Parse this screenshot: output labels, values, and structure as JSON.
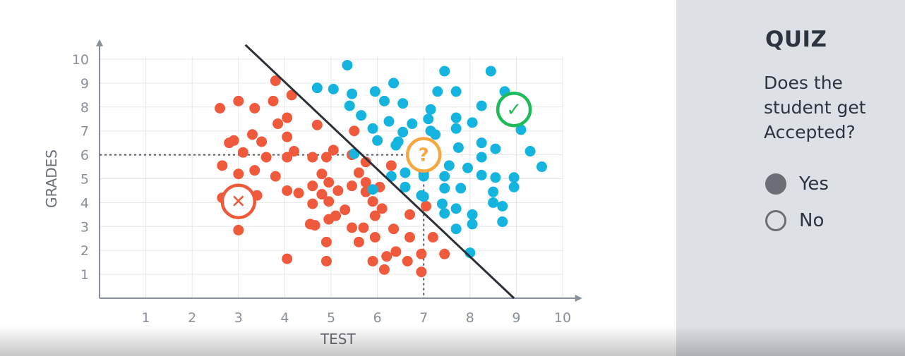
{
  "quiz": {
    "title": "QUIZ",
    "question": "Does the student get Accepted?",
    "options": [
      {
        "label": "Yes",
        "selected": true
      },
      {
        "label": "No",
        "selected": false
      }
    ]
  },
  "colors": {
    "rejected": "#f05a3c",
    "accepted": "#15b4de",
    "question_marker": "#f5a742",
    "accepted_marker": "#1fba5a",
    "axis": "#8a9099",
    "grid": "#e5e7ea",
    "boundary_line": "#2b2f36",
    "panel_bg": "#dde1e6"
  },
  "chart_data": {
    "type": "scatter",
    "xlabel": "TEST",
    "ylabel": "GRADES",
    "xlim": [
      0,
      10.3
    ],
    "ylim": [
      0,
      10.6
    ],
    "xticks": [
      1,
      2,
      3,
      4,
      5,
      6,
      7,
      8,
      9,
      10
    ],
    "yticks": [
      1,
      2,
      3,
      4,
      5,
      6,
      7,
      8,
      9,
      10
    ],
    "grid": true,
    "series": [
      {
        "color_key": "rejected",
        "points": [
          [
            2.6,
            7.95
          ],
          [
            3.0,
            8.25
          ],
          [
            2.8,
            6.5
          ],
          [
            2.9,
            6.6
          ],
          [
            3.3,
            6.85
          ],
          [
            3.1,
            6.1
          ],
          [
            3.5,
            6.55
          ],
          [
            3.35,
            7.95
          ],
          [
            3.8,
            9.1
          ],
          [
            3.75,
            8.25
          ],
          [
            4.15,
            8.5
          ],
          [
            3.85,
            7.3
          ],
          [
            4.05,
            7.55
          ],
          [
            3.6,
            5.9
          ],
          [
            4.05,
            6.75
          ],
          [
            4.2,
            6.15
          ],
          [
            4.05,
            5.9
          ],
          [
            4.7,
            7.25
          ],
          [
            2.65,
            5.55
          ],
          [
            3.0,
            5.2
          ],
          [
            3.35,
            5.35
          ],
          [
            3.8,
            5.1
          ],
          [
            2.65,
            4.2
          ],
          [
            3.4,
            4.3
          ],
          [
            4.05,
            4.5
          ],
          [
            4.3,
            4.4
          ],
          [
            3.0,
            2.85
          ],
          [
            4.05,
            1.65
          ],
          [
            4.6,
            5.9
          ],
          [
            4.9,
            5.9
          ],
          [
            5.05,
            6.2
          ],
          [
            5.45,
            6.0
          ],
          [
            5.6,
            5.25
          ],
          [
            5.75,
            5.7
          ],
          [
            5.5,
            7.0
          ],
          [
            4.8,
            5.2
          ],
          [
            4.6,
            4.7
          ],
          [
            4.8,
            4.35
          ],
          [
            4.95,
            4.05
          ],
          [
            4.6,
            3.95
          ],
          [
            4.95,
            4.85
          ],
          [
            5.15,
            4.5
          ],
          [
            5.45,
            4.7
          ],
          [
            5.75,
            4.85
          ],
          [
            5.75,
            4.45
          ],
          [
            5.3,
            3.7
          ],
          [
            5.1,
            3.45
          ],
          [
            4.95,
            3.3
          ],
          [
            4.55,
            3.1
          ],
          [
            4.65,
            3.05
          ],
          [
            5.45,
            2.95
          ],
          [
            5.7,
            2.95
          ],
          [
            4.9,
            2.35
          ],
          [
            5.6,
            2.35
          ],
          [
            6.05,
            4.65
          ],
          [
            5.9,
            4.05
          ],
          [
            6.1,
            3.75
          ],
          [
            5.95,
            3.45
          ],
          [
            5.95,
            2.55
          ],
          [
            6.35,
            2.9
          ],
          [
            6.7,
            3.5
          ],
          [
            6.7,
            2.55
          ],
          [
            7.2,
            2.55
          ],
          [
            6.2,
            1.75
          ],
          [
            6.4,
            1.95
          ],
          [
            6.15,
            1.2
          ],
          [
            5.9,
            1.55
          ],
          [
            6.65,
            1.55
          ],
          [
            6.95,
            1.85
          ],
          [
            6.95,
            1.1
          ],
          [
            7.45,
            1.85
          ],
          [
            7.05,
            3.85
          ],
          [
            6.3,
            5.55
          ],
          [
            4.9,
            1.55
          ]
        ]
      },
      {
        "color_key": "accepted",
        "points": [
          [
            4.7,
            8.8
          ],
          [
            5.05,
            8.75
          ],
          [
            5.35,
            9.75
          ],
          [
            5.45,
            8.55
          ],
          [
            5.4,
            8.05
          ],
          [
            5.65,
            7.65
          ],
          [
            5.95,
            8.65
          ],
          [
            6.15,
            8.25
          ],
          [
            6.35,
            9.0
          ],
          [
            6.55,
            8.15
          ],
          [
            5.9,
            7.1
          ],
          [
            6.0,
            6.6
          ],
          [
            6.25,
            7.4
          ],
          [
            6.45,
            6.55
          ],
          [
            6.55,
            6.95
          ],
          [
            6.75,
            7.3
          ],
          [
            7.1,
            7.5
          ],
          [
            7.15,
            7.9
          ],
          [
            7.3,
            8.65
          ],
          [
            7.45,
            9.5
          ],
          [
            7.7,
            8.65
          ],
          [
            8.05,
            7.35
          ],
          [
            8.25,
            8.05
          ],
          [
            8.45,
            9.5
          ],
          [
            8.75,
            8.65
          ],
          [
            9.1,
            7.05
          ],
          [
            9.3,
            6.15
          ],
          [
            9.55,
            5.5
          ],
          [
            5.5,
            6.05
          ],
          [
            6.4,
            6.4
          ],
          [
            6.6,
            5.25
          ],
          [
            6.3,
            5.1
          ],
          [
            6.6,
            4.65
          ],
          [
            7.15,
            7.0
          ],
          [
            7.25,
            6.85
          ],
          [
            7.7,
            7.55
          ],
          [
            7.7,
            7.1
          ],
          [
            8.25,
            6.5
          ],
          [
            8.25,
            5.9
          ],
          [
            8.55,
            6.25
          ],
          [
            7.95,
            5.45
          ],
          [
            7.55,
            5.55
          ],
          [
            7.45,
            5.1
          ],
          [
            7.45,
            4.6
          ],
          [
            7.8,
            4.6
          ],
          [
            8.25,
            5.15
          ],
          [
            8.55,
            5.05
          ],
          [
            8.5,
            4.45
          ],
          [
            8.7,
            3.85
          ],
          [
            8.5,
            4.0
          ],
          [
            8.95,
            5.05
          ],
          [
            8.95,
            4.65
          ],
          [
            8.05,
            3.5
          ],
          [
            8.05,
            3.1
          ],
          [
            8.7,
            3.2
          ],
          [
            7.45,
            3.55
          ],
          [
            7.7,
            3.75
          ],
          [
            7.7,
            2.9
          ],
          [
            7.4,
            3.95
          ],
          [
            7.0,
            4.25
          ],
          [
            7.0,
            5.1
          ],
          [
            5.9,
            4.55
          ],
          [
            7.0,
            5.2
          ],
          [
            6.95,
            4.3
          ],
          [
            8.0,
            1.9
          ],
          [
            7.75,
            6.3
          ]
        ]
      }
    ],
    "boundary_line": [
      [
        3.15,
        10.6
      ],
      [
        8.95,
        0
      ]
    ],
    "guide_point": [
      7.0,
      6.0
    ],
    "markers": [
      {
        "symbol": "?",
        "x": 7.0,
        "y": 6.0,
        "color_key": "question_marker"
      },
      {
        "symbol": "✓",
        "x": 8.95,
        "y": 7.9,
        "color_key": "accepted_marker"
      },
      {
        "symbol": "✕",
        "x": 3.0,
        "y": 4.05,
        "color_key": "rejected"
      }
    ]
  }
}
